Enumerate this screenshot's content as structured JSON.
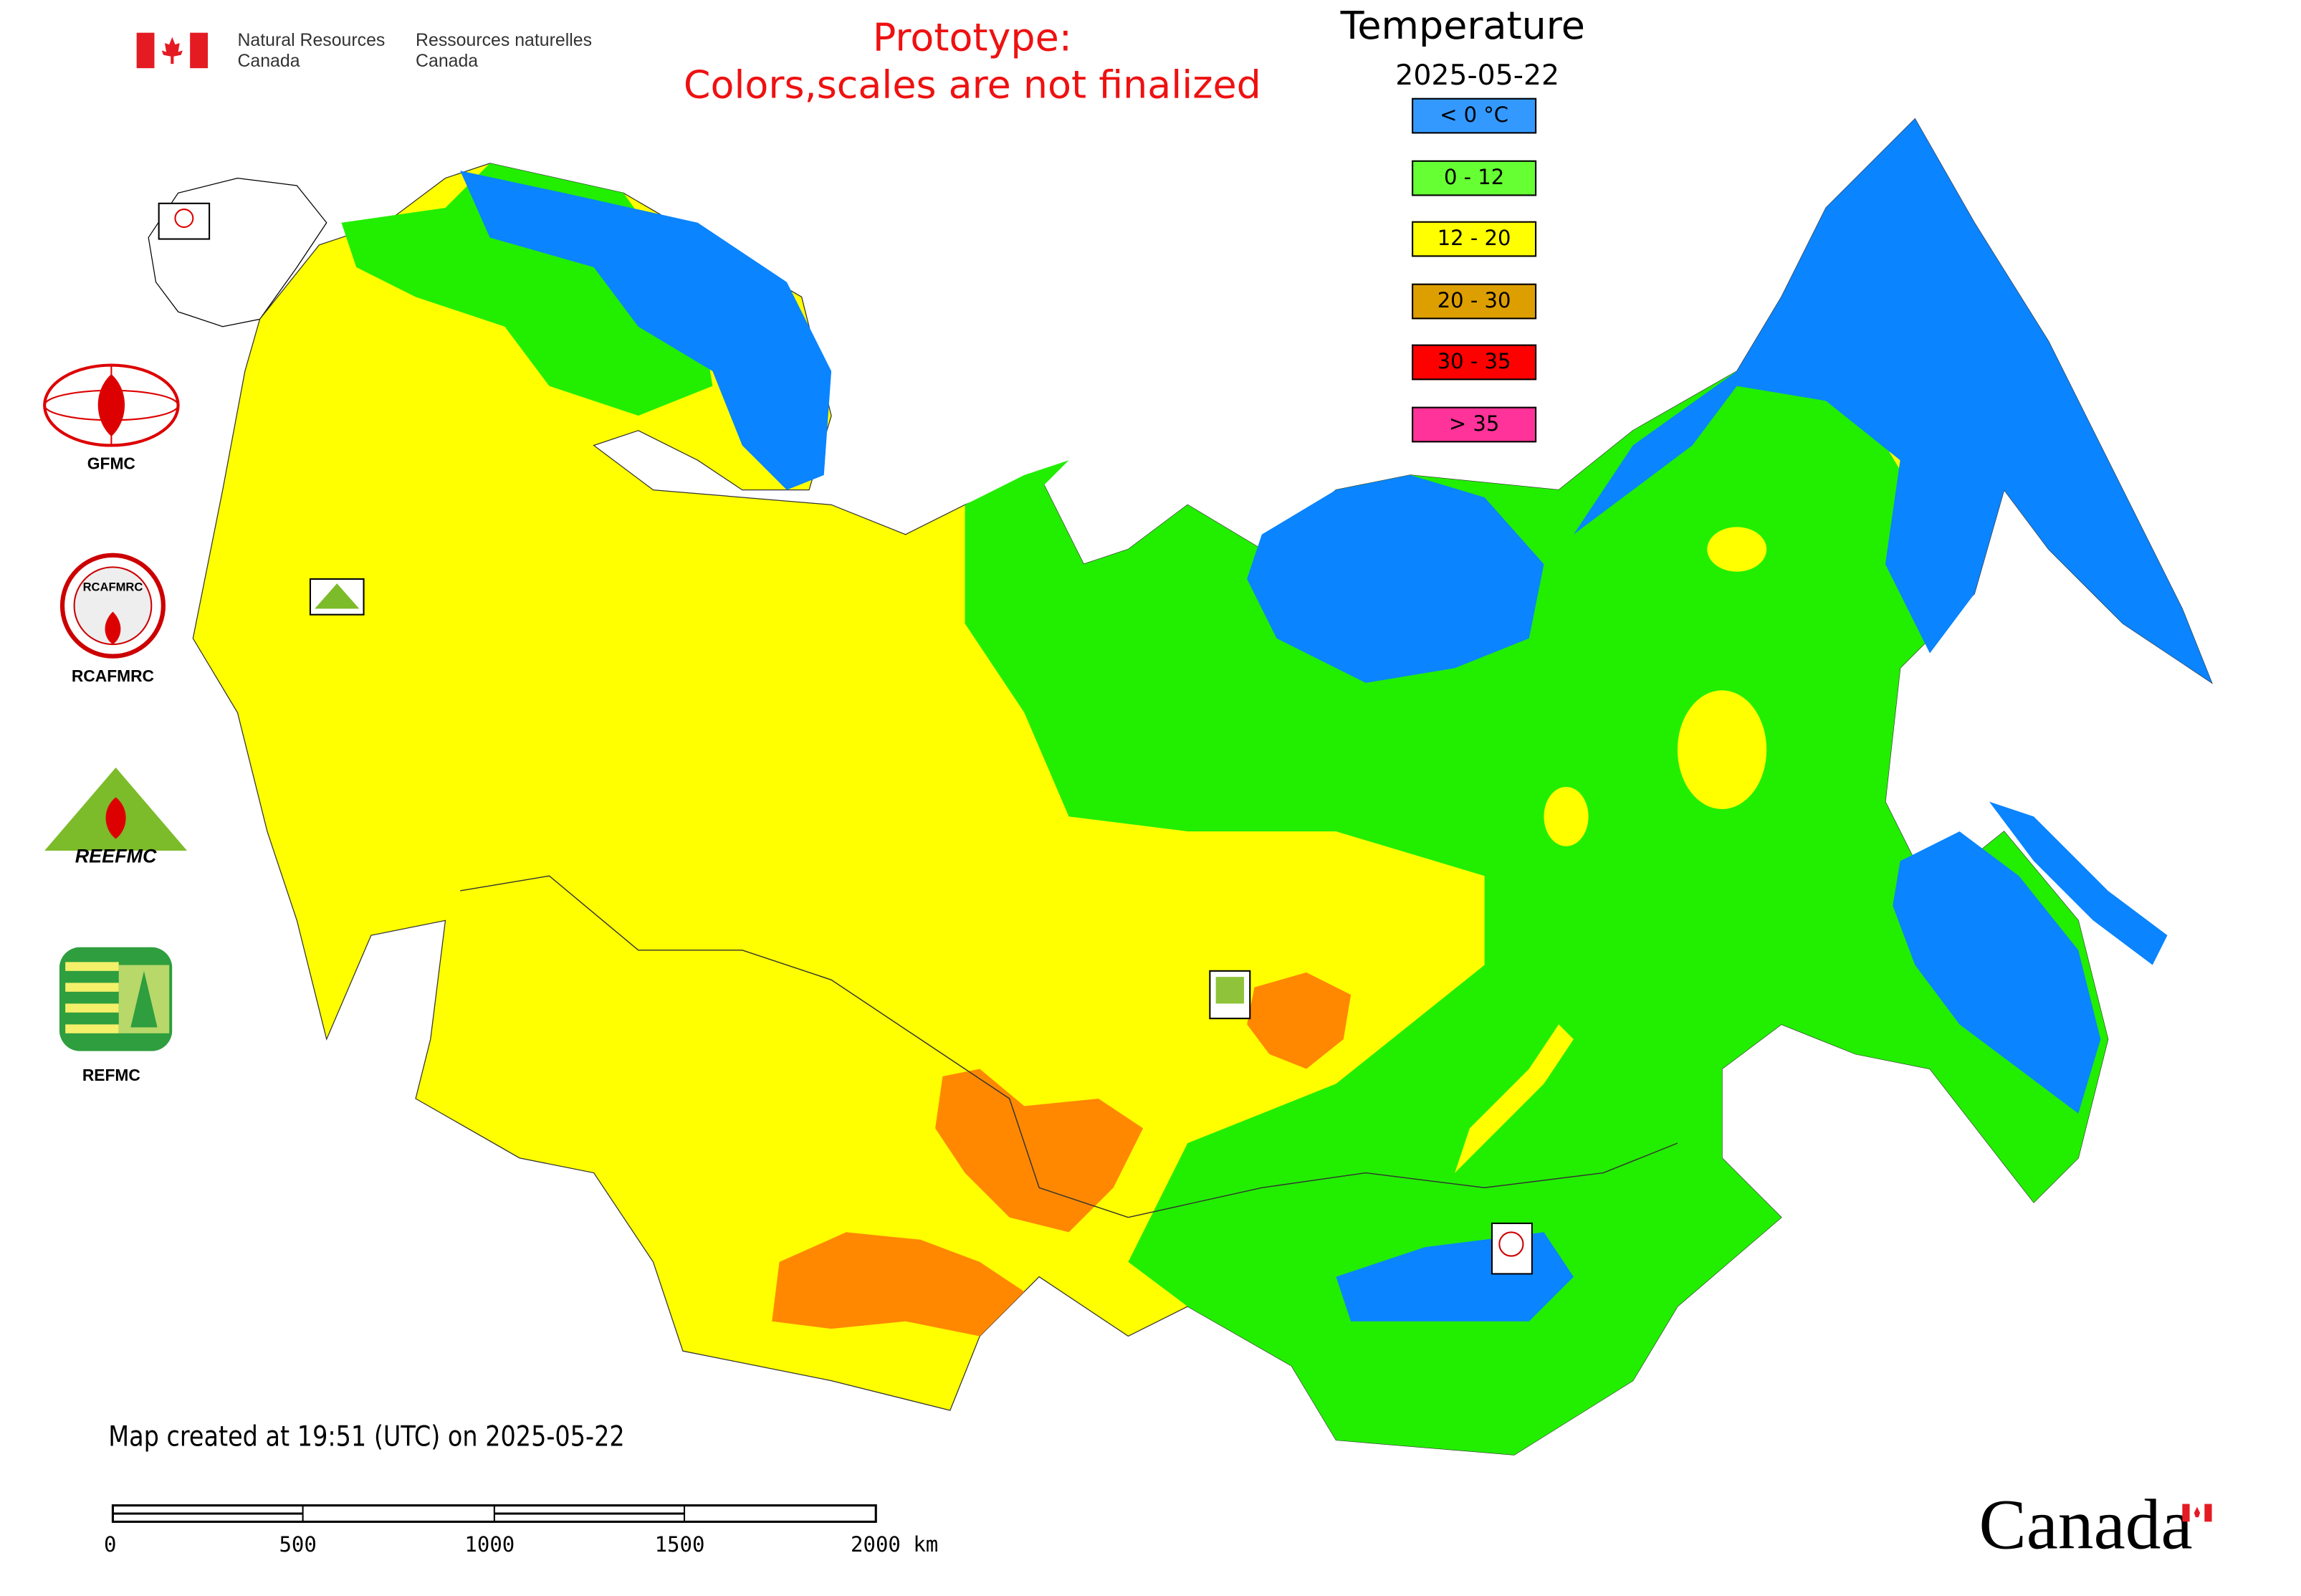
{
  "header": {
    "nrcan_en": [
      "Natural Resources",
      "Canada"
    ],
    "nrcan_fr": [
      "Ressources naturelles",
      "Canada"
    ],
    "prototype_line1": "Prototype:",
    "prototype_line2": "Colors,scales are not finalized"
  },
  "legend": {
    "title": "Temperature",
    "date": "2025-05-22",
    "items": [
      {
        "label": "< 0 °C",
        "color": "#3399ff"
      },
      {
        "label": "0 - 12",
        "color": "#66ff33"
      },
      {
        "label": "12 - 20",
        "color": "#ffff00"
      },
      {
        "label": "20 - 30",
        "color": "#dd9e00"
      },
      {
        "label": "30 - 35",
        "color": "#ff0000"
      },
      {
        "label": "> 35",
        "color": "#ff3399"
      }
    ]
  },
  "logos": {
    "gfmc": "GFMC",
    "rcafmrc": "RCAFMRC",
    "reefmc": "REEFMC",
    "refmc": "REFMC"
  },
  "footer": {
    "created": "Map created at 19:51 (UTC) on 2025-05-22",
    "scale_ticks": [
      "0",
      "500",
      "1000",
      "1500",
      "2000 km"
    ],
    "wordmark": "Canada"
  },
  "map_colors": {
    "cold": "#0a84ff",
    "cool": "#22ee00",
    "mild": "#ffff00",
    "warm": "#ff8800"
  }
}
